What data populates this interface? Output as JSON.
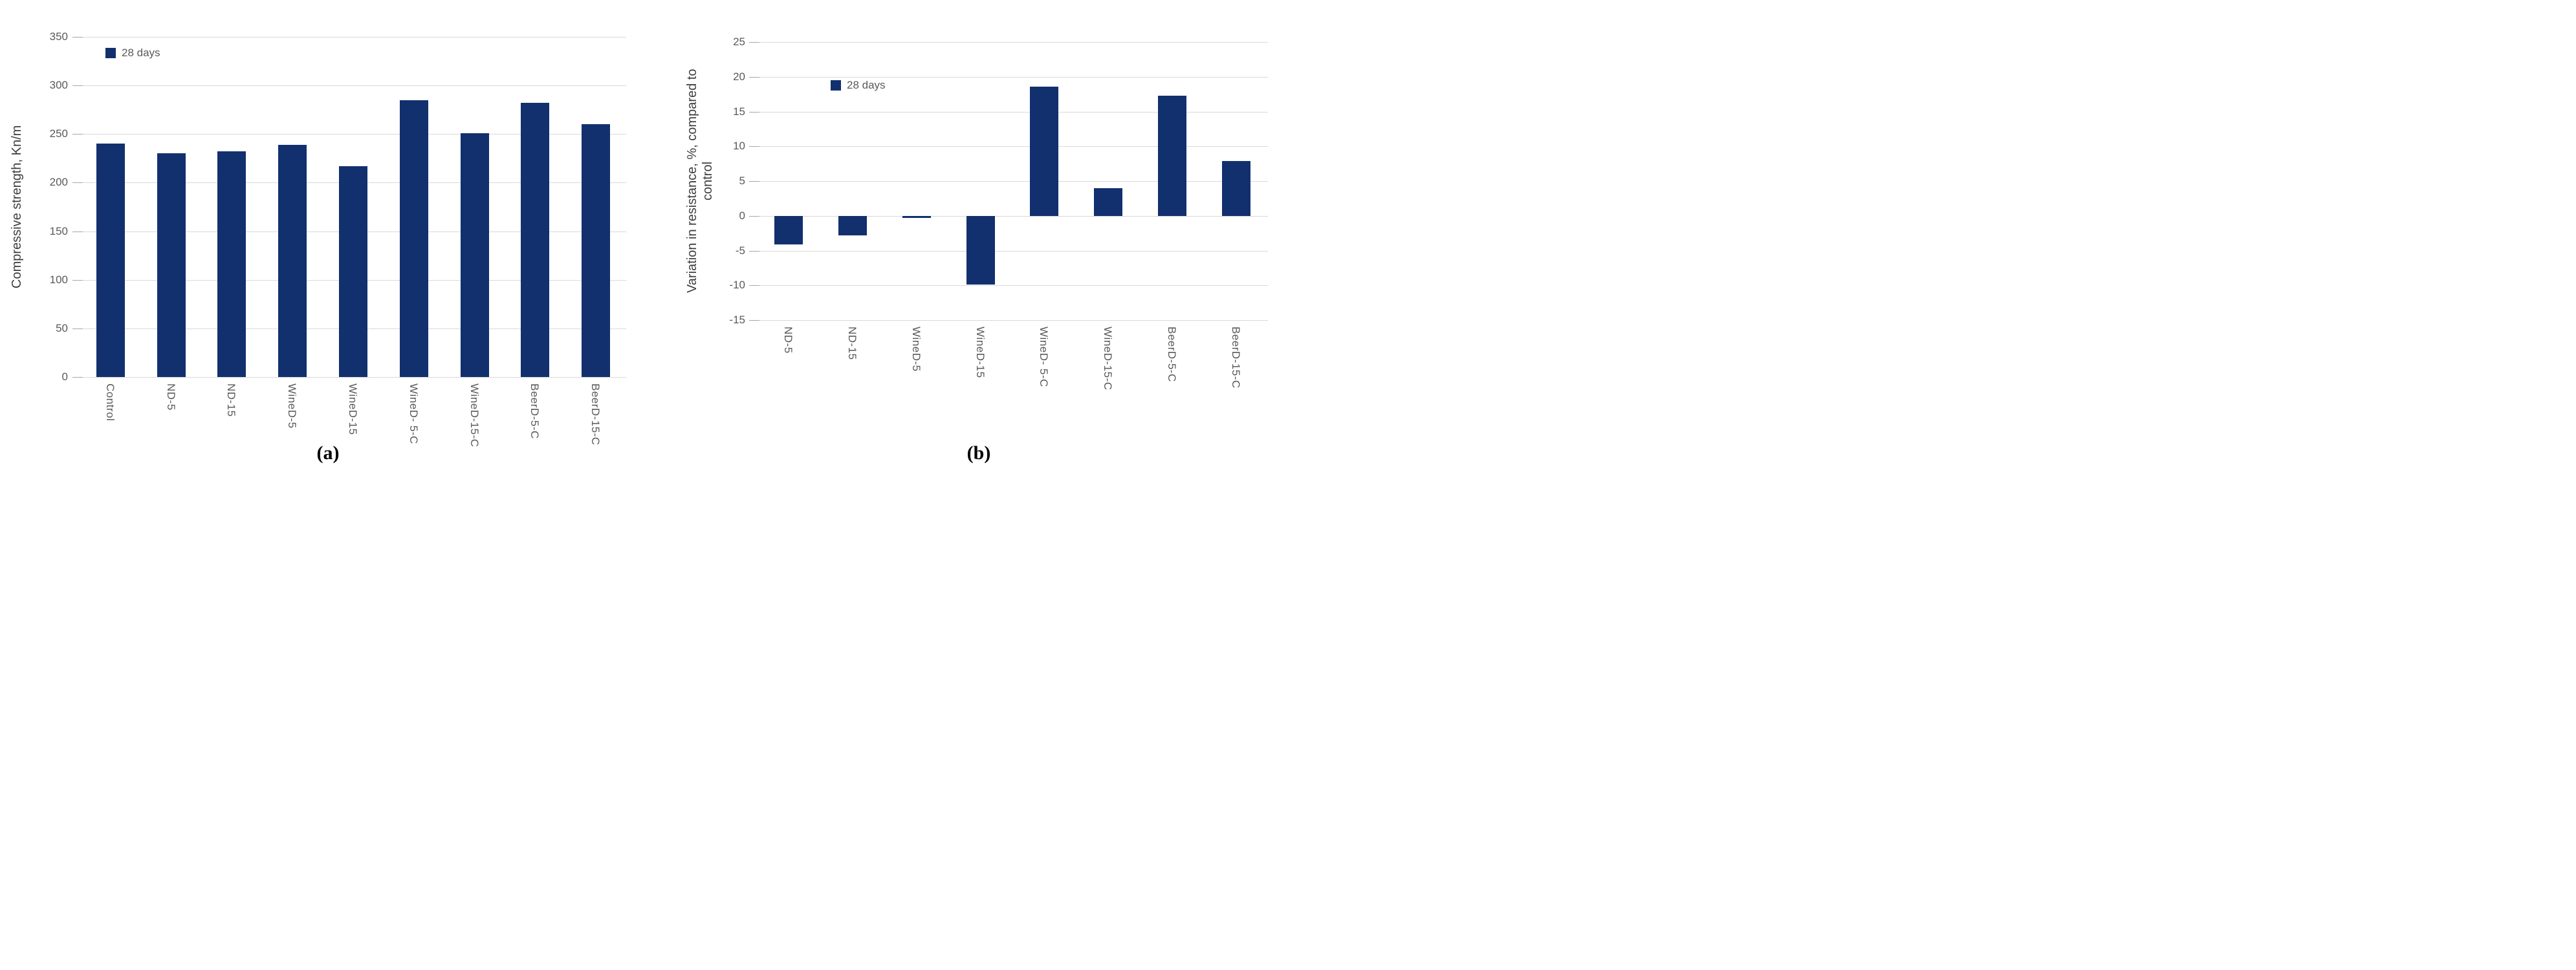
{
  "figure": {
    "caption_a": "(a)",
    "caption_b": "(b)"
  },
  "colors": {
    "bar": "#12306e",
    "gridline": "#d9d9d9",
    "tick_stub": "#a6a6a6",
    "tick_label": "#595959",
    "axis_title": "#3d3d3d",
    "legend_text": "#595959",
    "caption_text": "#000000",
    "background": "#ffffff"
  },
  "chart_data": [
    {
      "type": "bar",
      "title": "",
      "xlabel": "",
      "ylabel": "Compressive strength, Kn/m",
      "ylabel_lines": [
        "Compressive strength, Kn/m"
      ],
      "ylim": [
        0,
        350
      ],
      "yticks": [
        0,
        50,
        100,
        150,
        200,
        250,
        300,
        350
      ],
      "grid": true,
      "legend": [
        "28 days"
      ],
      "legend_position": "inside-top-left",
      "categories": [
        "Control",
        "ND-5",
        "ND-15",
        "WineD-5",
        "WineD-15",
        "WineD- 5-C",
        "WineD-15-C",
        "BeerD-5-C",
        "BeerD-15-C"
      ],
      "series": [
        {
          "name": "28 days",
          "values": [
            240,
            230,
            232,
            239,
            217,
            285,
            251,
            282,
            260
          ]
        }
      ]
    },
    {
      "type": "bar",
      "title": "",
      "xlabel": "",
      "ylabel": "Variation in resistance, %, compared to control",
      "ylabel_lines": [
        "Variation in resistance, %, compared to",
        "control"
      ],
      "ylim": [
        -15,
        25
      ],
      "yticks": [
        -15,
        -10,
        -5,
        0,
        5,
        10,
        15,
        20,
        25
      ],
      "grid": true,
      "legend": [
        "28 days"
      ],
      "legend_position": "inside-top-left",
      "categories": [
        "ND-5",
        "ND-15",
        "WineD-5",
        "WineD-15",
        "WineD- 5-C",
        "WineD-15-C",
        "BeerD-5-C",
        "BeerD-15-C"
      ],
      "series": [
        {
          "name": "28 days",
          "values": [
            -4.1,
            -2.8,
            -0.3,
            -9.9,
            18.6,
            4.0,
            17.3,
            7.9
          ]
        }
      ]
    }
  ]
}
